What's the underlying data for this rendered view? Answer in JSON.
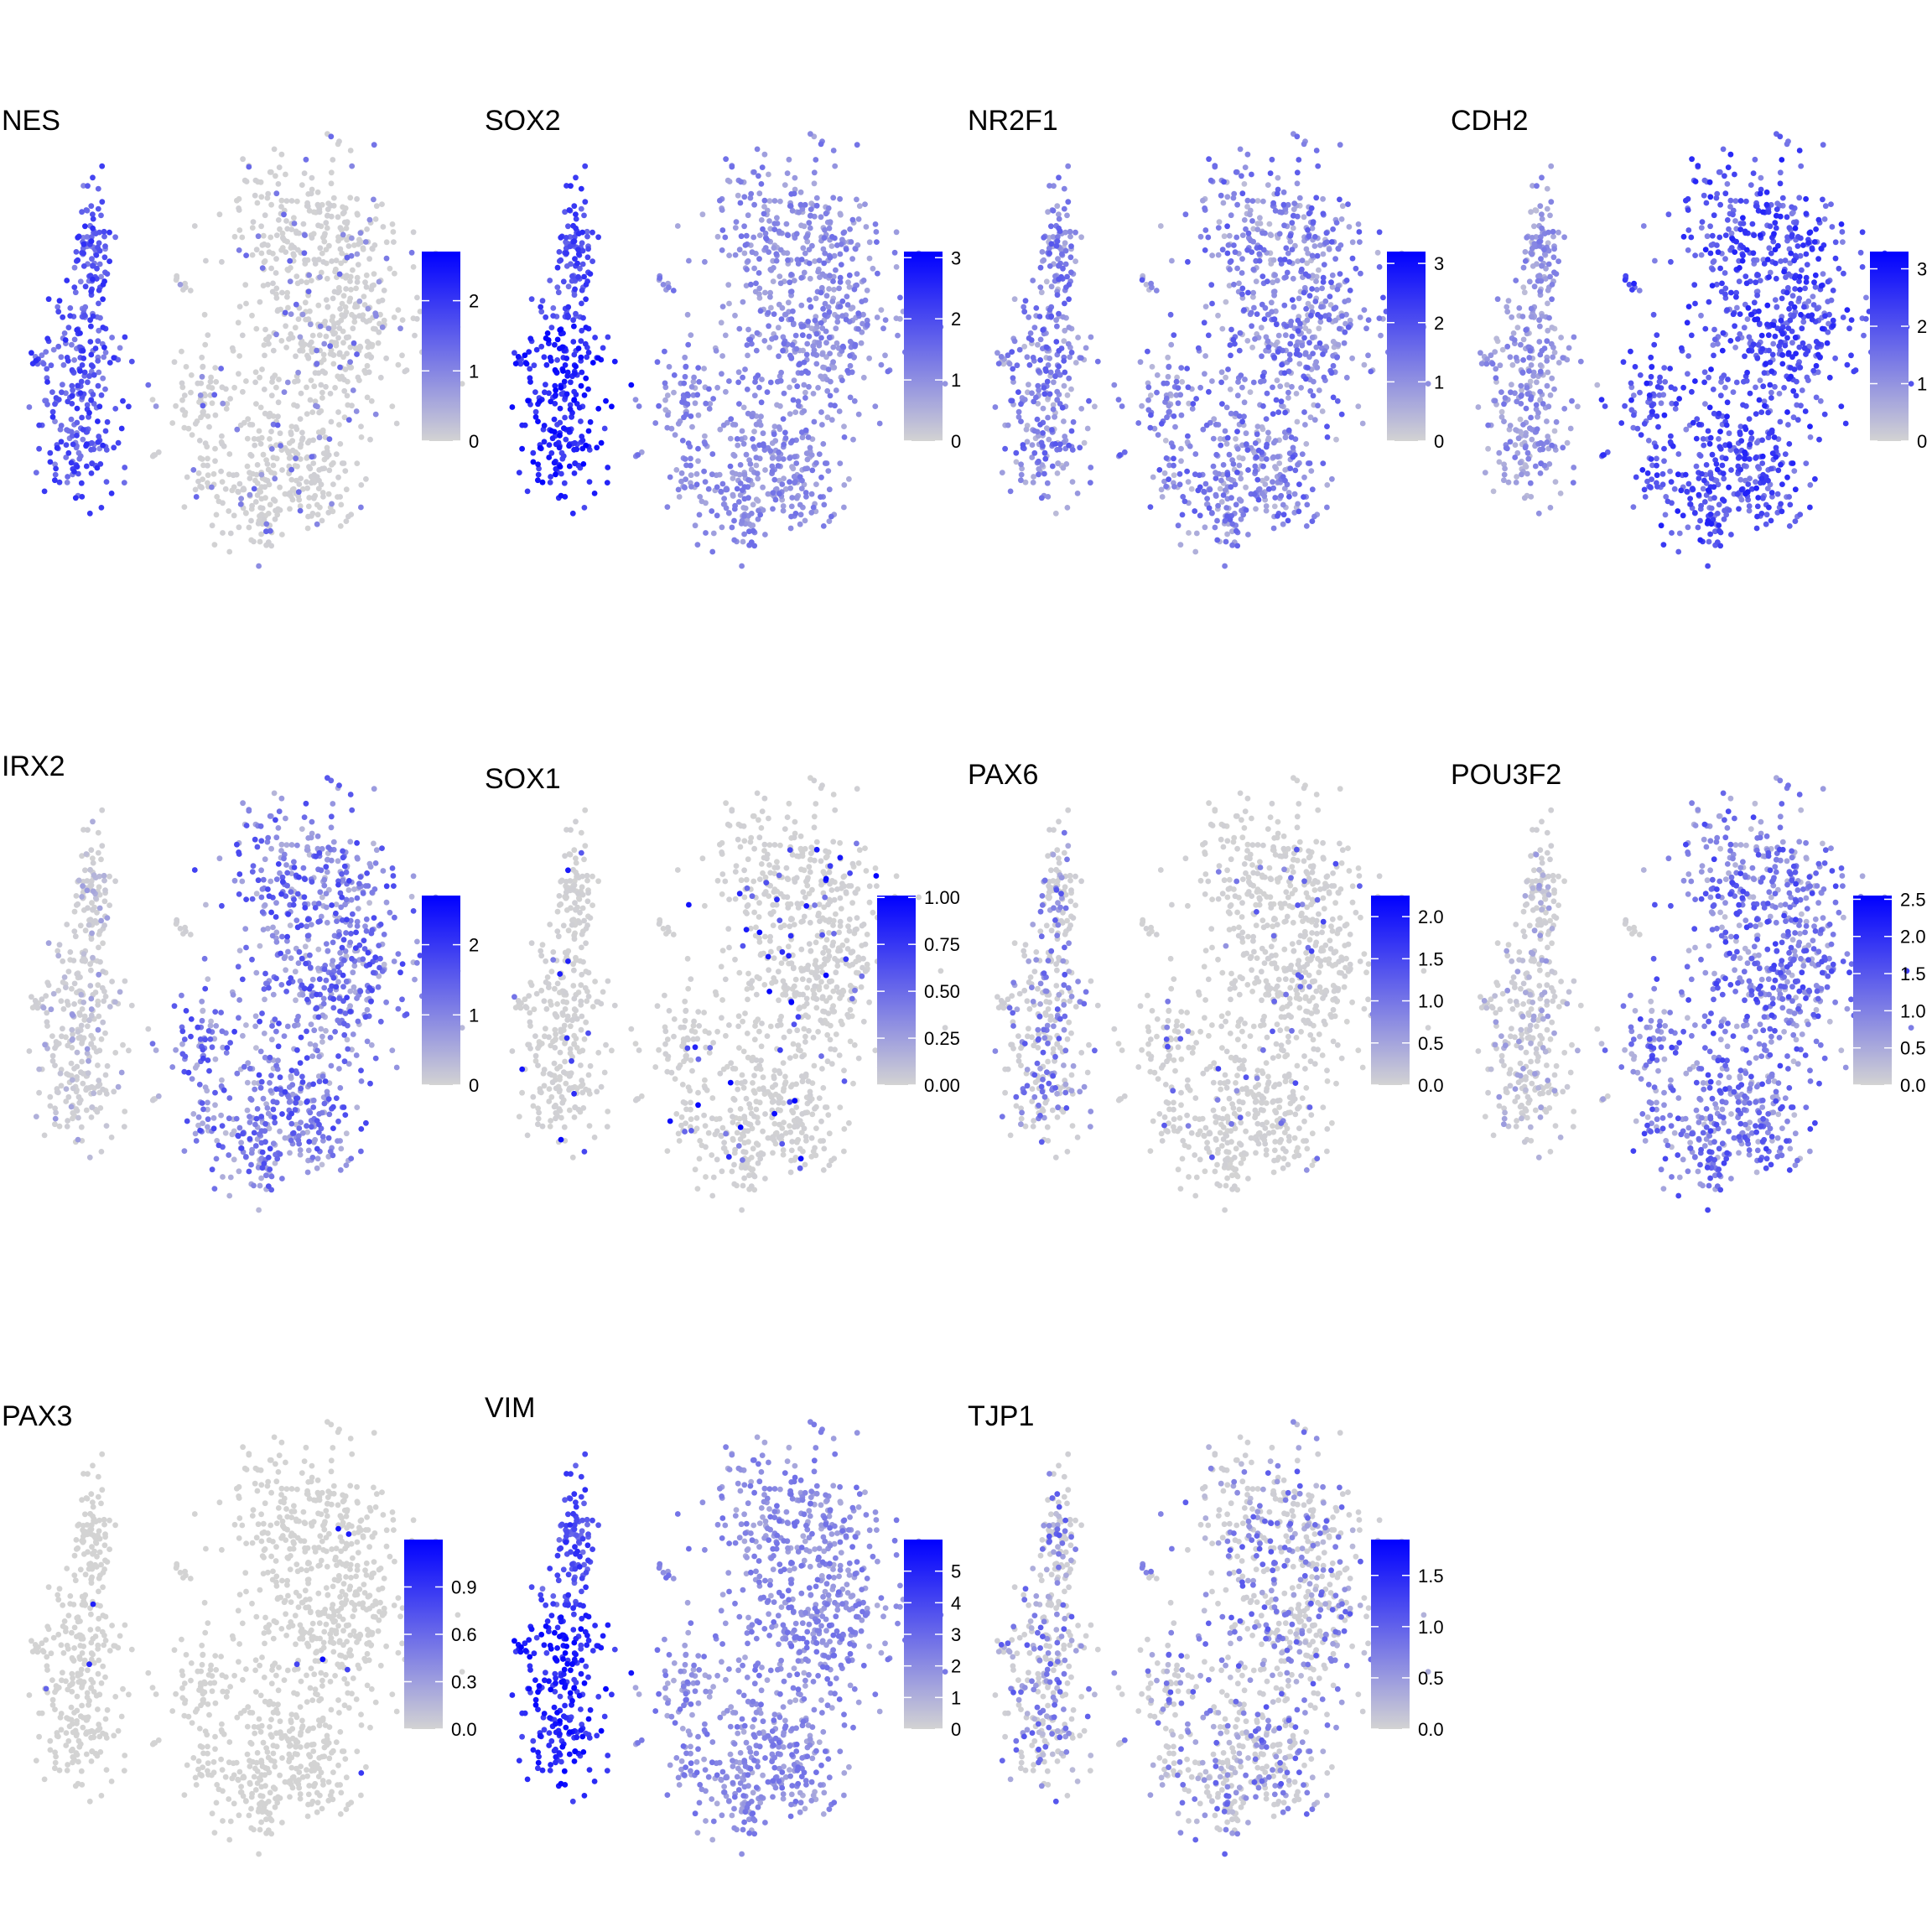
{
  "figure": {
    "background": "#ffffff"
  },
  "chart_data": [
    {
      "type": "scatter",
      "title": "NES",
      "color_low": "#d3d3d3",
      "color_high": "#0000ff",
      "color_range": [
        0,
        2.7
      ],
      "color_ticks": [
        "0",
        "1",
        "2"
      ],
      "expression_pattern": "left-column",
      "legend_position": "right"
    },
    {
      "type": "scatter",
      "title": "SOX2",
      "color_low": "#d3d3d3",
      "color_high": "#0000ff",
      "color_range": [
        0,
        3.1
      ],
      "color_ticks": [
        "0",
        "1",
        "2",
        "3"
      ],
      "expression_pattern": "left-column-strong",
      "legend_position": "right"
    },
    {
      "type": "scatter",
      "title": "NR2F1",
      "color_low": "#d3d3d3",
      "color_high": "#0000ff",
      "color_range": [
        0,
        3.2
      ],
      "color_ticks": [
        "0",
        "1",
        "2",
        "3"
      ],
      "expression_pattern": "broad",
      "legend_position": "right"
    },
    {
      "type": "scatter",
      "title": "CDH2",
      "color_low": "#d3d3d3",
      "color_high": "#0000ff",
      "color_range": [
        0,
        3.3
      ],
      "color_ticks": [
        "0",
        "1",
        "2",
        "3"
      ],
      "expression_pattern": "broad-strong",
      "legend_position": "right"
    },
    {
      "type": "scatter",
      "title": "IRX2",
      "color_low": "#d3d3d3",
      "color_high": "#0000ff",
      "color_range": [
        0,
        2.7
      ],
      "color_ticks": [
        "0",
        "1",
        "2"
      ],
      "expression_pattern": "right-cluster",
      "legend_position": "right"
    },
    {
      "type": "scatter",
      "title": "SOX1",
      "color_low": "#d3d3d3",
      "color_high": "#0000ff",
      "color_range": [
        0,
        1.01
      ],
      "color_ticks": [
        "0.00",
        "0.25",
        "0.50",
        "0.75",
        "1.00"
      ],
      "expression_pattern": "sparse",
      "legend_position": "right"
    },
    {
      "type": "scatter",
      "title": "PAX6",
      "color_low": "#d3d3d3",
      "color_high": "#0000ff",
      "color_range": [
        0,
        2.25
      ],
      "color_ticks": [
        "0.0",
        "0.5",
        "1.0",
        "1.5",
        "2.0"
      ],
      "expression_pattern": "sparse-left",
      "legend_position": "right"
    },
    {
      "type": "scatter",
      "title": "POU3F2",
      "color_low": "#d3d3d3",
      "color_high": "#0000ff",
      "color_range": [
        0,
        2.55
      ],
      "color_ticks": [
        "0.0",
        "0.5",
        "1.0",
        "1.5",
        "2.0",
        "2.5"
      ],
      "expression_pattern": "right-cluster",
      "legend_position": "right"
    },
    {
      "type": "scatter",
      "title": "PAX3",
      "color_low": "#d3d3d3",
      "color_high": "#0000ff",
      "color_range": [
        0,
        1.2
      ],
      "color_ticks": [
        "0.0",
        "0.3",
        "0.6",
        "0.9"
      ],
      "expression_pattern": "very-sparse",
      "legend_position": "right"
    },
    {
      "type": "scatter",
      "title": "VIM",
      "color_low": "#d3d3d3",
      "color_high": "#0000ff",
      "color_range": [
        0,
        6
      ],
      "color_ticks": [
        "0",
        "1",
        "2",
        "3",
        "4",
        "5"
      ],
      "expression_pattern": "left-column-strong",
      "legend_position": "right"
    },
    {
      "type": "scatter",
      "title": "TJP1",
      "color_low": "#d3d3d3",
      "color_high": "#0000ff",
      "color_range": [
        0,
        1.85
      ],
      "color_ticks": [
        "0.0",
        "0.5",
        "1.0",
        "1.5"
      ],
      "expression_pattern": "mixed",
      "legend_position": "right"
    }
  ]
}
